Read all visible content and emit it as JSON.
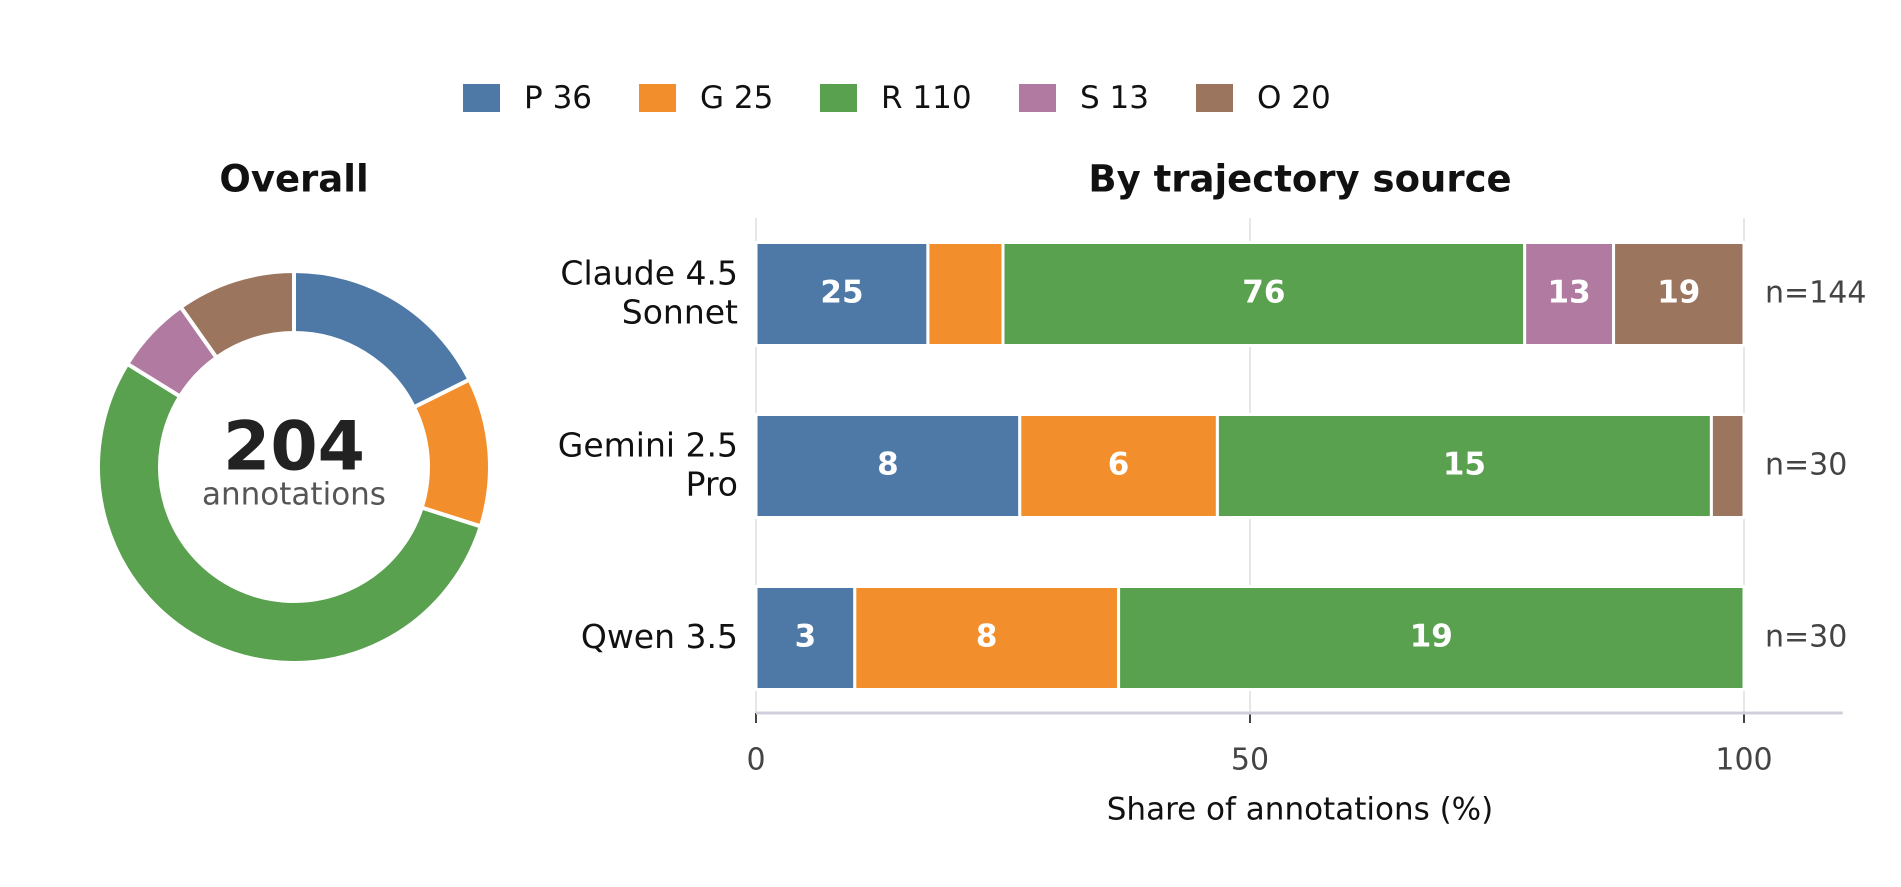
{
  "chart_data": [
    {
      "type": "donut",
      "title": "Overall",
      "categories": [
        "P",
        "G",
        "R",
        "S",
        "O"
      ],
      "values": [
        36,
        25,
        110,
        13,
        20
      ],
      "colors": [
        "#4e79a7",
        "#f28e2b",
        "#59a14f",
        "#b07aa1",
        "#9c755f"
      ],
      "center_value": 204,
      "center_label": "annotations"
    },
    {
      "type": "stacked_barh",
      "title": "By trajectory source",
      "categories": [
        "Claude 4.5\nSonnet",
        "Gemini 2.5\nPro",
        "Qwen 3.5"
      ],
      "series": [
        {
          "name": "P",
          "color": "#4e79a7",
          "values": [
            17.4,
            26.7,
            10.0
          ],
          "counts": [
            25,
            8,
            3
          ]
        },
        {
          "name": "G",
          "color": "#f28e2b",
          "values": [
            7.6,
            20.0,
            26.7
          ],
          "counts": [
            null,
            6,
            8
          ]
        },
        {
          "name": "R",
          "color": "#59a14f",
          "values": [
            52.8,
            50.0,
            63.3
          ],
          "counts": [
            76,
            15,
            19
          ]
        },
        {
          "name": "S",
          "color": "#b07aa1",
          "values": [
            9.0,
            0,
            0
          ],
          "counts": [
            13,
            null,
            null
          ]
        },
        {
          "name": "O",
          "color": "#9c755f",
          "values": [
            13.2,
            3.3,
            0
          ],
          "counts": [
            19,
            null,
            null
          ]
        }
      ],
      "n_labels": [
        "n=144",
        "n=30",
        "n=30"
      ],
      "xlabel": "Share of annotations (%)",
      "xlim": [
        0,
        110
      ],
      "xticks": [
        0,
        50,
        100
      ],
      "grid": true
    }
  ]
}
